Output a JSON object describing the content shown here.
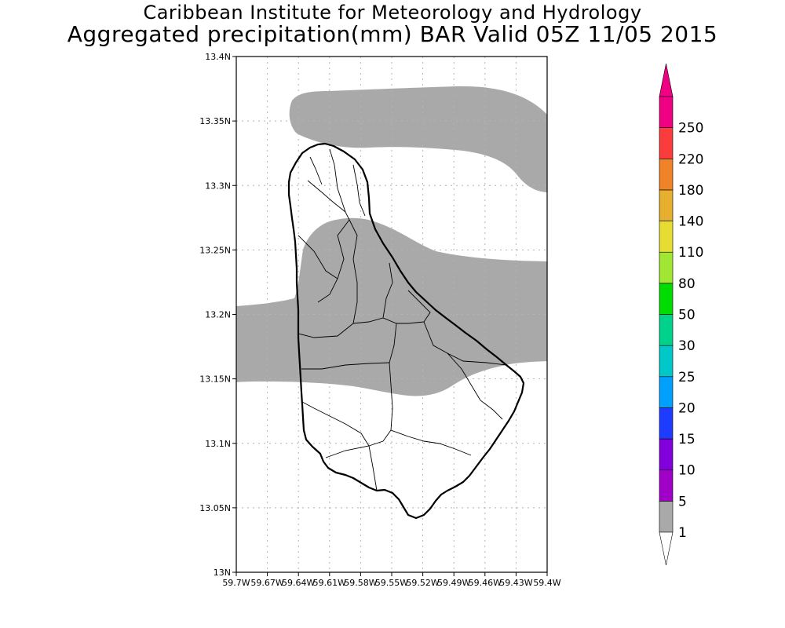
{
  "title": {
    "line1": "Caribbean Institute for Meteorology and Hydrology",
    "line2": "Aggregated precipitation(mm) BAR Valid 05Z 11/05 2015"
  },
  "map": {
    "region": "Barbados",
    "lon_range": [
      -59.7,
      -59.4
    ],
    "lat_range": [
      13.0,
      13.4
    ],
    "grid": "dotted",
    "lat_ticks": [
      {
        "value": 13.4,
        "label": "13.4N"
      },
      {
        "value": 13.35,
        "label": "13.35N"
      },
      {
        "value": 13.3,
        "label": "13.3N"
      },
      {
        "value": 13.25,
        "label": "13.25N"
      },
      {
        "value": 13.2,
        "label": "13.2N"
      },
      {
        "value": 13.15,
        "label": "13.15N"
      },
      {
        "value": 13.1,
        "label": "13.1N"
      },
      {
        "value": 13.05,
        "label": "13.05N"
      },
      {
        "value": 13.0,
        "label": "13N"
      }
    ],
    "lon_ticks": [
      {
        "value": -59.7,
        "label": "59.7W"
      },
      {
        "value": -59.67,
        "label": "59.67W"
      },
      {
        "value": -59.64,
        "label": "59.64W"
      },
      {
        "value": -59.61,
        "label": "59.61W"
      },
      {
        "value": -59.58,
        "label": "59.58W"
      },
      {
        "value": -59.55,
        "label": "59.55W"
      },
      {
        "value": -59.52,
        "label": "59.52W"
      },
      {
        "value": -59.49,
        "label": "59.49W"
      },
      {
        "value": -59.46,
        "label": "59.46W"
      },
      {
        "value": -59.43,
        "label": "59.43W"
      },
      {
        "value": -59.4,
        "label": "59.4W"
      }
    ]
  },
  "colorbar": {
    "levels": [
      {
        "label": "1",
        "color": "#a9a9a9"
      },
      {
        "label": "5",
        "color": "#a000c8"
      },
      {
        "label": "10",
        "color": "#8200dc"
      },
      {
        "label": "15",
        "color": "#1e3cff"
      },
      {
        "label": "20",
        "color": "#00a0ff"
      },
      {
        "label": "25",
        "color": "#00c8c8"
      },
      {
        "label": "30",
        "color": "#00d28c"
      },
      {
        "label": "50",
        "color": "#00dc00"
      },
      {
        "label": "80",
        "color": "#a0e632"
      },
      {
        "label": "110",
        "color": "#e6dc32"
      },
      {
        "label": "140",
        "color": "#e6af2d"
      },
      {
        "label": "180",
        "color": "#f08228"
      },
      {
        "label": "220",
        "color": "#fa3c3c"
      },
      {
        "label": "250",
        "color": "#f00082"
      }
    ],
    "lower_arrow_color": "#ffffff",
    "upper_arrow_color": "#f00082"
  },
  "colors": {
    "precip_band": "#a9a9a9",
    "coastline": "#000000",
    "grid": "#b4b4b4"
  }
}
